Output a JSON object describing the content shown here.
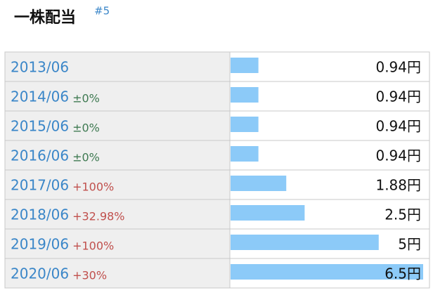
{
  "chart_data": {
    "type": "bar",
    "title": "一株配当",
    "title_note": "#5",
    "categories": [
      "2013/06",
      "2014/06",
      "2015/06",
      "2016/06",
      "2017/06",
      "2018/06",
      "2019/06",
      "2020/06"
    ],
    "changes": [
      null,
      "±0%",
      "±0%",
      "±0%",
      "+100%",
      "+32.98%",
      "+100%",
      "+30%"
    ],
    "values": [
      0.94,
      0.94,
      0.94,
      0.94,
      1.88,
      2.5,
      5,
      6.5
    ],
    "value_labels": [
      "0.94円",
      "0.94円",
      "0.94円",
      "0.94円",
      "1.88円",
      "2.5円",
      "5円",
      "6.5円"
    ],
    "color": "#8ccaf8",
    "xlim": [
      0,
      6.5
    ]
  }
}
